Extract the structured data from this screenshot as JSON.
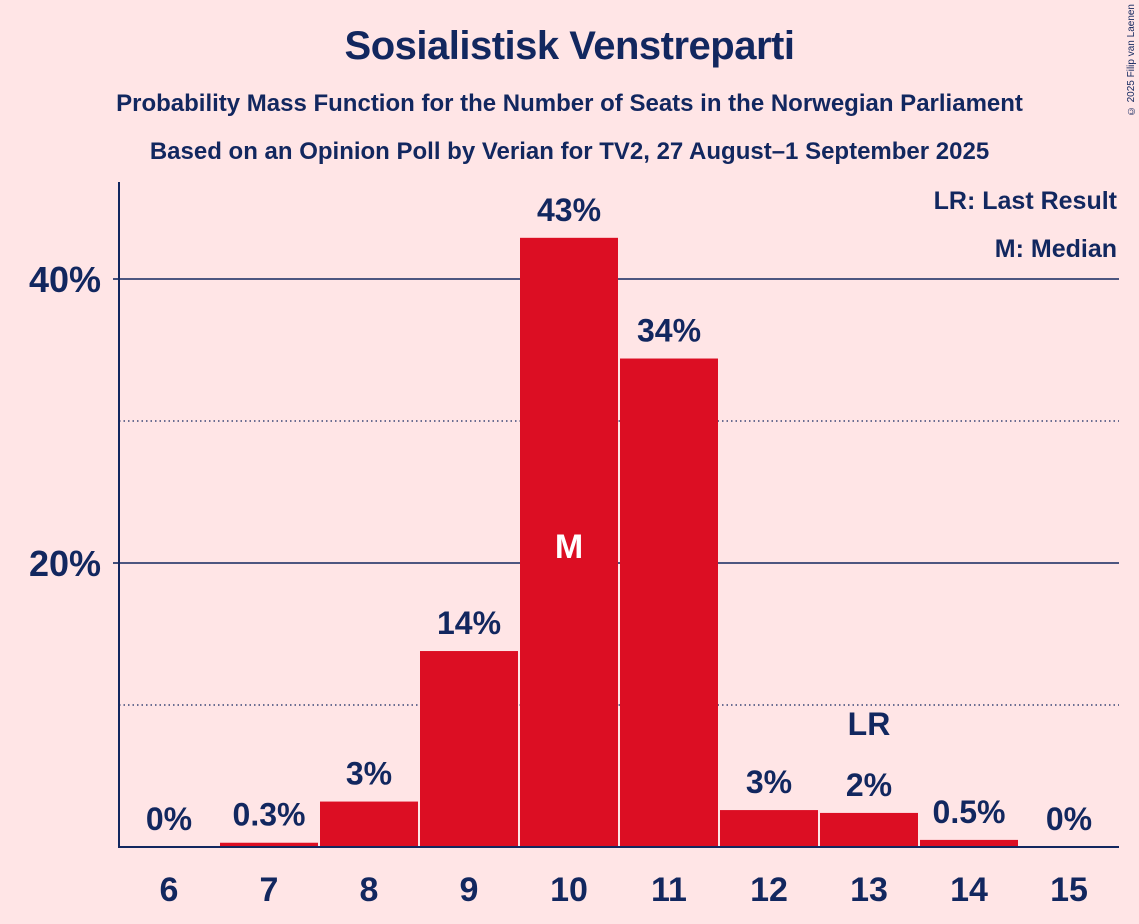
{
  "title": "Sosialistisk Venstreparti",
  "subtitle1": "Probability Mass Function for the Number of Seats in the Norwegian Parliament",
  "subtitle2": "Based on an Opinion Poll by Verian for TV2, 27 August–1 September 2025",
  "copyright": "© 2025 Filip van Laenen",
  "legend": {
    "last_result": "LR: Last Result",
    "median": "M: Median"
  },
  "colors": {
    "bar": "#DC0E23",
    "text": "#12275F",
    "background": "#FFE5E6"
  },
  "chart_data": {
    "type": "bar",
    "categories": [
      "6",
      "7",
      "8",
      "9",
      "10",
      "11",
      "12",
      "13",
      "14",
      "15"
    ],
    "values": [
      0,
      0.3,
      3.2,
      13.8,
      42.9,
      34.4,
      2.6,
      2.4,
      0.5,
      0
    ],
    "data_labels": [
      "0%",
      "0.3%",
      "3%",
      "14%",
      "43%",
      "34%",
      "3%",
      "2%",
      "0.5%",
      "0%"
    ],
    "ylim": [
      0,
      47
    ],
    "y_ticks": [
      {
        "value": 20,
        "label": "20%"
      },
      {
        "value": 40,
        "label": "40%"
      }
    ],
    "y_minor_gridlines": [
      10,
      30
    ],
    "median": {
      "category": "10",
      "label": "M"
    },
    "last_result": {
      "category": "13",
      "label": "LR"
    },
    "grid": true,
    "legend_placement": "top-right"
  }
}
